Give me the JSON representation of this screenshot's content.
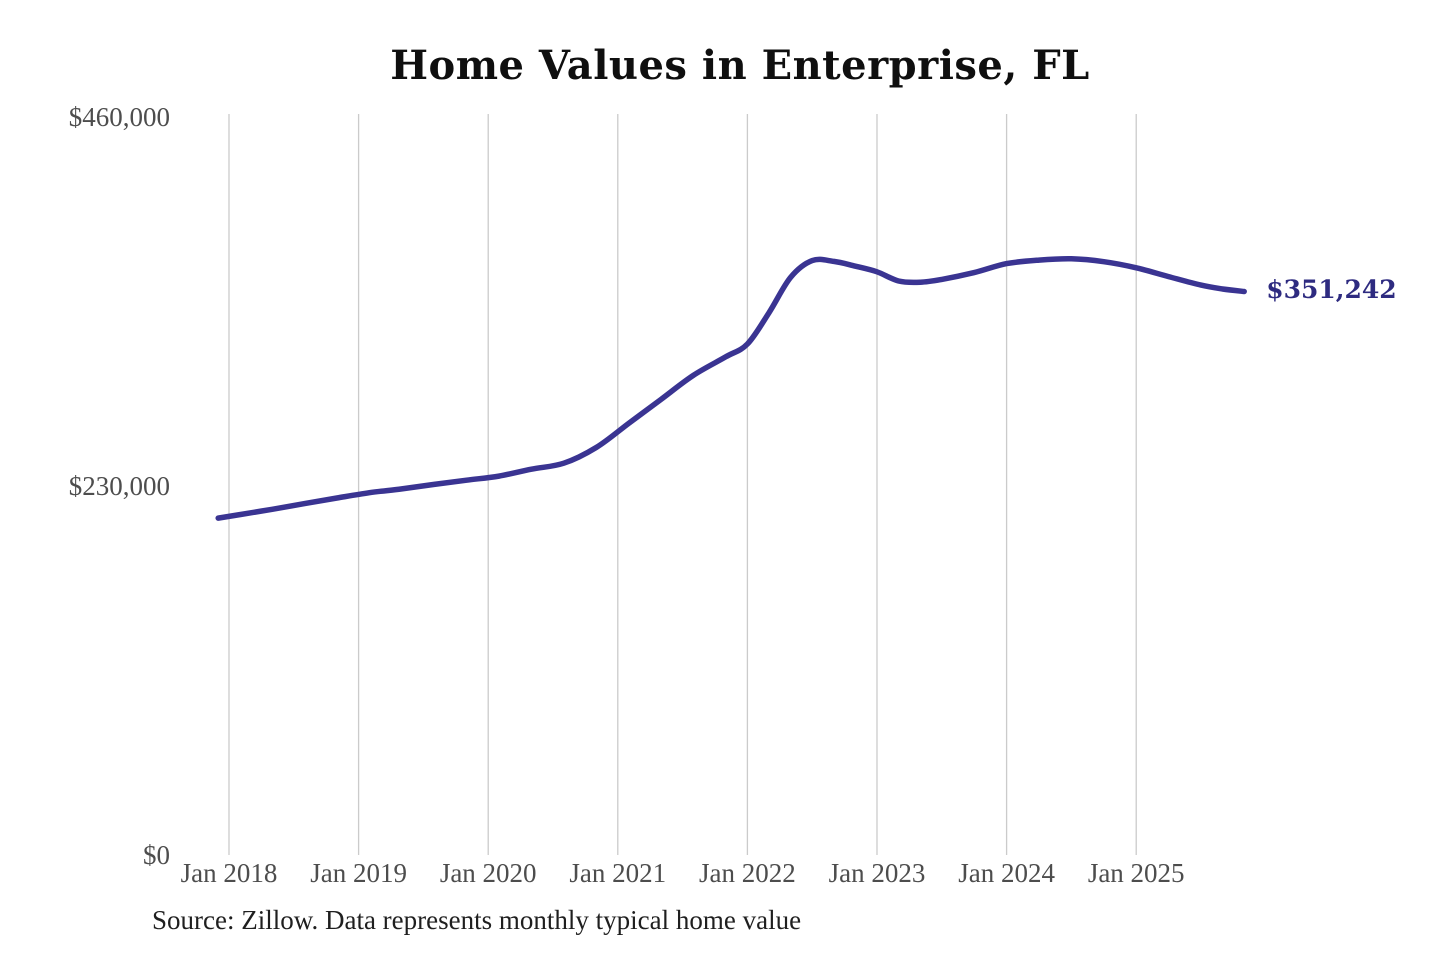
{
  "page": {
    "background": "#ffffff"
  },
  "footer": {
    "source": "Source: Zillow. Data represents monthly typical home value"
  },
  "chart_data": {
    "type": "line",
    "title": "Home Values in Enterprise, FL",
    "xlabel": "",
    "ylabel": "",
    "ylim": [
      0,
      460000
    ],
    "grid": "vertical-only",
    "legend": "none",
    "line_color": "#3a3492",
    "gridline_color": "#cbcbcb",
    "end_label": "$351,242",
    "end_label_color": "#2e2b80",
    "y_ticks": [
      {
        "label": "$460,000",
        "value": 460000
      },
      {
        "label": "$230,000",
        "value": 230000
      },
      {
        "label": "$0",
        "value": 0
      }
    ],
    "x_ticks": [
      {
        "label": "Jan 2018",
        "year": 2018
      },
      {
        "label": "Jan 2019",
        "year": 2019
      },
      {
        "label": "Jan 2020",
        "year": 2020
      },
      {
        "label": "Jan 2021",
        "year": 2021
      },
      {
        "label": "Jan 2022",
        "year": 2022
      },
      {
        "label": "Jan 2023",
        "year": 2023
      },
      {
        "label": "Jan 2024",
        "year": 2024
      },
      {
        "label": "Jan 2025",
        "year": 2025
      }
    ],
    "series": [
      {
        "name": "Monthly typical home value",
        "columns": [
          "date",
          "value_usd"
        ],
        "points": [
          [
            "2017-12",
            210000
          ],
          [
            "2018-02",
            212200
          ],
          [
            "2018-05",
            215500
          ],
          [
            "2018-08",
            219000
          ],
          [
            "2018-11",
            222500
          ],
          [
            "2019-02",
            225800
          ],
          [
            "2019-05",
            228200
          ],
          [
            "2019-08",
            231000
          ],
          [
            "2019-11",
            233600
          ],
          [
            "2020-02",
            236200
          ],
          [
            "2020-05",
            240500
          ],
          [
            "2020-08",
            244200
          ],
          [
            "2020-11",
            254000
          ],
          [
            "2021-02",
            269000
          ],
          [
            "2021-05",
            284000
          ],
          [
            "2021-08",
            299000
          ],
          [
            "2021-11",
            310500
          ],
          [
            "2022-01",
            318500
          ],
          [
            "2022-03",
            338000
          ],
          [
            "2022-05",
            360000
          ],
          [
            "2022-07",
            370500
          ],
          [
            "2022-09",
            370000
          ],
          [
            "2022-11",
            367000
          ],
          [
            "2023-01",
            363500
          ],
          [
            "2023-03",
            357800
          ],
          [
            "2023-05",
            357000
          ],
          [
            "2023-07",
            358800
          ],
          [
            "2023-10",
            363000
          ],
          [
            "2024-01",
            368600
          ],
          [
            "2024-04",
            370800
          ],
          [
            "2024-07",
            371600
          ],
          [
            "2024-10",
            369800
          ],
          [
            "2025-01",
            366000
          ],
          [
            "2025-04",
            360500
          ],
          [
            "2025-07",
            355200
          ],
          [
            "2025-09",
            352800
          ],
          [
            "2025-11",
            351242
          ]
        ],
        "latest_value": 351242
      }
    ]
  }
}
